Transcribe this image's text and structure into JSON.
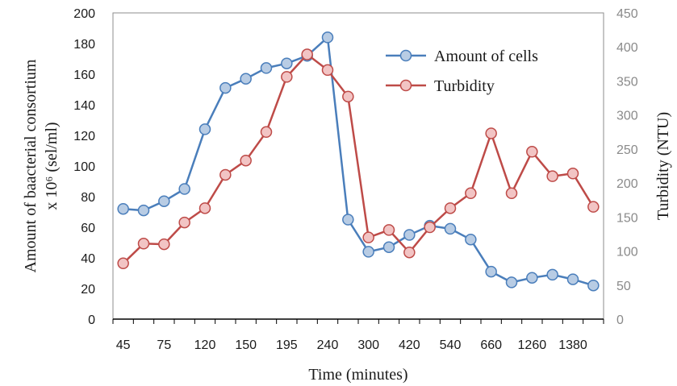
{
  "chart_data": {
    "type": "line",
    "x_tick_labels": [
      "45",
      "75",
      "120",
      "150",
      "195",
      "240",
      "300",
      "420",
      "540",
      "660",
      "1260",
      "1380"
    ],
    "point_count": 24,
    "xlabel": "Time (minutes)",
    "ylabel_line1": "Amount of baacterial consortium",
    "ylabel_line2": "x 10⁶ (sel/ml)",
    "y2label": "Turbidity (NTU)",
    "ylim": [
      0,
      200
    ],
    "yticks": [
      0,
      20,
      40,
      60,
      80,
      100,
      120,
      140,
      160,
      180,
      200
    ],
    "y2lim": [
      0,
      450
    ],
    "y2ticks": [
      0,
      50,
      100,
      150,
      200,
      250,
      300,
      350,
      400,
      450
    ],
    "legend_position": "top-right",
    "series": [
      {
        "name": "Amount of cells",
        "axis": "left",
        "color": "#4a7ebb",
        "marker_fill": "#b8cce4",
        "values": [
          72,
          71,
          77,
          85,
          124,
          151,
          157,
          164,
          167,
          172,
          184,
          65,
          44,
          47,
          55,
          61,
          59,
          52,
          31,
          24,
          27,
          29,
          26,
          22
        ]
      },
      {
        "name": "Turbidity",
        "axis": "right",
        "color": "#be4b48",
        "marker_fill": "#f2c4c4",
        "values": [
          82,
          111,
          110,
          142,
          163,
          212,
          233,
          275,
          356,
          389,
          366,
          327,
          120,
          131,
          98,
          135,
          163,
          185,
          273,
          185,
          246,
          210,
          214,
          165
        ]
      }
    ]
  }
}
